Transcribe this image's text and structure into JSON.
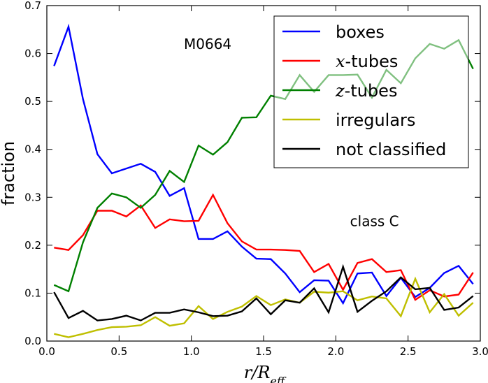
{
  "chart_data": {
    "type": "line",
    "title": "",
    "xlabel": "r/R_eff",
    "ylabel": "fraction",
    "xlim": [
      0.0,
      3.0
    ],
    "ylim": [
      0.0,
      0.7
    ],
    "xticks": [
      0.0,
      0.5,
      1.0,
      1.5,
      2.0,
      2.5,
      3.0
    ],
    "xtick_labels": [
      "0.0",
      "0.5",
      "1.0",
      "1.5",
      "2.0",
      "2.5",
      "3.0"
    ],
    "yticks": [
      0.0,
      0.1,
      0.2,
      0.3,
      0.4,
      0.5,
      0.6,
      0.7
    ],
    "ytick_labels": [
      "0.0",
      "0.1",
      "0.2",
      "0.3",
      "0.4",
      "0.5",
      "0.6",
      "0.7"
    ],
    "legend_position": "top-right",
    "annotations": [
      {
        "text": "M0664",
        "x": 1.05,
        "y": 0.62
      },
      {
        "text": "class C",
        "x": 2.2,
        "y": 0.25
      }
    ],
    "x": [
      0.05,
      0.15,
      0.25,
      0.35,
      0.45,
      0.55,
      0.65,
      0.75,
      0.85,
      0.95,
      1.05,
      1.15,
      1.25,
      1.35,
      1.45,
      1.55,
      1.65,
      1.75,
      1.85,
      1.95,
      2.05,
      2.15,
      2.25,
      2.35,
      2.45,
      2.55,
      2.65,
      2.75,
      2.85,
      2.95
    ],
    "series": [
      {
        "name": "boxes",
        "color": "#0000ff",
        "values": [
          0.574,
          0.656,
          0.505,
          0.39,
          0.35,
          0.36,
          0.37,
          0.353,
          0.303,
          0.319,
          0.213,
          0.213,
          0.229,
          0.197,
          0.172,
          0.171,
          0.141,
          0.102,
          0.127,
          0.126,
          0.079,
          0.141,
          0.143,
          0.094,
          0.132,
          0.092,
          0.111,
          0.142,
          0.157,
          0.119
        ]
      },
      {
        "name": "x-tubes",
        "color": "#ff0000",
        "values": [
          0.195,
          0.19,
          0.221,
          0.272,
          0.272,
          0.26,
          0.283,
          0.236,
          0.254,
          0.25,
          0.251,
          0.305,
          0.246,
          0.208,
          0.191,
          0.191,
          0.19,
          0.188,
          0.144,
          0.161,
          0.107,
          0.163,
          0.171,
          0.144,
          0.148,
          0.086,
          0.106,
          0.093,
          0.097,
          0.143
        ]
      },
      {
        "name": "z-tubes",
        "color": "#008000",
        "values": [
          0.117,
          0.104,
          0.206,
          0.278,
          0.308,
          0.3,
          0.278,
          0.305,
          0.355,
          0.332,
          0.408,
          0.389,
          0.415,
          0.466,
          0.467,
          0.512,
          0.505,
          0.555,
          0.52,
          0.555,
          0.555,
          0.556,
          0.508,
          0.566,
          0.538,
          0.59,
          0.62,
          0.61,
          0.628,
          0.568
        ]
      },
      {
        "name": "irregulars",
        "color": "#bfbf00",
        "values": [
          0.015,
          0.008,
          0.015,
          0.023,
          0.029,
          0.03,
          0.033,
          0.05,
          0.032,
          0.037,
          0.073,
          0.046,
          0.061,
          0.072,
          0.094,
          0.075,
          0.087,
          0.08,
          0.103,
          0.101,
          0.104,
          0.085,
          0.093,
          0.089,
          0.052,
          0.13,
          0.06,
          0.098,
          0.053,
          0.08
        ]
      },
      {
        "name": "not classified",
        "color": "#000000",
        "values": [
          0.102,
          0.048,
          0.063,
          0.043,
          0.046,
          0.053,
          0.043,
          0.059,
          0.059,
          0.066,
          0.06,
          0.052,
          0.053,
          0.062,
          0.089,
          0.056,
          0.085,
          0.08,
          0.11,
          0.06,
          0.155,
          0.061,
          0.084,
          0.104,
          0.133,
          0.108,
          0.111,
          0.065,
          0.07,
          0.094
        ]
      }
    ],
    "legend": [
      "boxes",
      "x-tubes",
      "z-tubes",
      "irregulars",
      "not classified"
    ]
  }
}
